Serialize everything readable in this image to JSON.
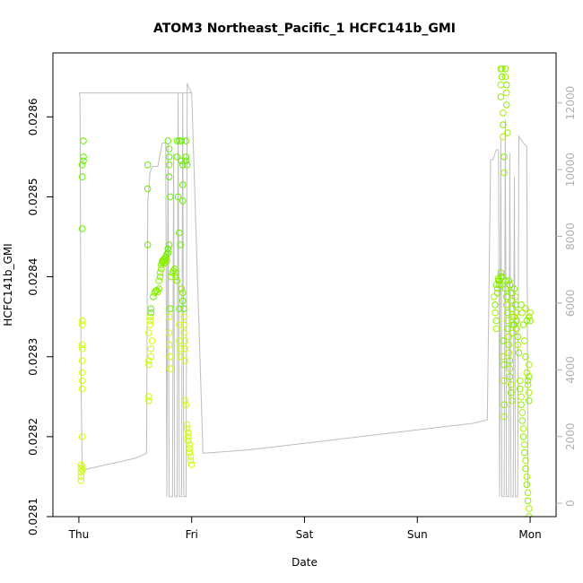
{
  "chart_data": {
    "type": "scatter",
    "title": "ATOM3 Northeast_Pacific_1 HCFC141b_GMI",
    "xlabel": "Date",
    "ylabel": "HCFC141b_GMI",
    "x_ticks": [
      "Thu",
      "Fri",
      "Sat",
      "Sun",
      "Mon"
    ],
    "xlim_days": [
      -0.23,
      4.23
    ],
    "y_ticks": [
      0.0281,
      0.0282,
      0.0283,
      0.0284,
      0.0285,
      0.0286
    ],
    "ylim": [
      0.0281,
      0.02868
    ],
    "y2_ticks": [
      0,
      2000,
      4000,
      6000,
      8000,
      10000,
      12000
    ],
    "y2lim": [
      -400,
      13500
    ],
    "colors": {
      "altitude_line": "#bebebe",
      "points_low": "#ccff00",
      "points_high": "#66ee00",
      "axis": "#000000",
      "right_axis": "#b0b0b0"
    },
    "series": [
      {
        "kind": "concentration_points",
        "points": [
          [
            0.02,
            0.028165
          ],
          [
            0.02,
            0.02816
          ],
          [
            0.02,
            0.028155
          ],
          [
            0.02,
            0.02815
          ],
          [
            0.02,
            0.028145
          ],
          [
            0.03,
            0.028163
          ],
          [
            0.03,
            0.028158
          ],
          [
            0.03,
            0.0282
          ],
          [
            0.03,
            0.02826
          ],
          [
            0.03,
            0.02828
          ],
          [
            0.03,
            0.02827
          ],
          [
            0.03,
            0.028295
          ],
          [
            0.03,
            0.02831
          ],
          [
            0.03,
            0.028315
          ],
          [
            0.03,
            0.02834
          ],
          [
            0.03,
            0.028345
          ],
          [
            0.03,
            0.02846
          ],
          [
            0.03,
            0.028525
          ],
          [
            0.03,
            0.02854
          ],
          [
            0.04,
            0.028545
          ],
          [
            0.04,
            0.02855
          ],
          [
            0.04,
            0.02857
          ],
          [
            0.61,
            0.02854
          ],
          [
            0.61,
            0.02851
          ],
          [
            0.61,
            0.02844
          ],
          [
            0.62,
            0.02825
          ],
          [
            0.62,
            0.028245
          ],
          [
            0.62,
            0.02829
          ],
          [
            0.62,
            0.028295
          ],
          [
            0.62,
            0.02833
          ],
          [
            0.63,
            0.02834
          ],
          [
            0.63,
            0.028345
          ],
          [
            0.63,
            0.02835
          ],
          [
            0.64,
            0.028355
          ],
          [
            0.64,
            0.02836
          ],
          [
            0.64,
            0.0283
          ],
          [
            0.64,
            0.02831
          ],
          [
            0.65,
            0.02832
          ],
          [
            0.66,
            0.028375
          ],
          [
            0.67,
            0.02838
          ],
          [
            0.68,
            0.028382
          ],
          [
            0.69,
            0.028383
          ],
          [
            0.7,
            0.028381
          ],
          [
            0.71,
            0.028385
          ],
          [
            0.71,
            0.028395
          ],
          [
            0.72,
            0.0284
          ],
          [
            0.72,
            0.028405
          ],
          [
            0.73,
            0.02841
          ],
          [
            0.73,
            0.028415
          ],
          [
            0.74,
            0.028418
          ],
          [
            0.74,
            0.02842
          ],
          [
            0.75,
            0.028422
          ],
          [
            0.75,
            0.028419
          ],
          [
            0.76,
            0.028421
          ],
          [
            0.76,
            0.028417
          ],
          [
            0.77,
            0.028423
          ],
          [
            0.77,
            0.028425
          ],
          [
            0.78,
            0.02842
          ],
          [
            0.78,
            0.028428
          ],
          [
            0.79,
            0.02843
          ],
          [
            0.79,
            0.028435
          ],
          [
            0.8,
            0.02844
          ],
          [
            0.79,
            0.02857
          ],
          [
            0.8,
            0.02856
          ],
          [
            0.8,
            0.02855
          ],
          [
            0.8,
            0.02854
          ],
          [
            0.8,
            0.028525
          ],
          [
            0.81,
            0.0285
          ],
          [
            0.8,
            0.02833
          ],
          [
            0.8,
            0.028315
          ],
          [
            0.81,
            0.0283
          ],
          [
            0.81,
            0.028285
          ],
          [
            0.8,
            0.02835
          ],
          [
            0.81,
            0.02836
          ],
          [
            0.82,
            0.0284
          ],
          [
            0.83,
            0.028405
          ],
          [
            0.84,
            0.028408
          ],
          [
            0.85,
            0.02841
          ],
          [
            0.86,
            0.028405
          ],
          [
            0.86,
            0.0284
          ],
          [
            0.87,
            0.028395
          ],
          [
            0.87,
            0.02857
          ],
          [
            0.87,
            0.02855
          ],
          [
            0.88,
            0.0285
          ],
          [
            0.89,
            0.02857
          ],
          [
            0.89,
            0.028455
          ],
          [
            0.9,
            0.02844
          ],
          [
            0.89,
            0.02836
          ],
          [
            0.89,
            0.02834
          ],
          [
            0.89,
            0.02832
          ],
          [
            0.9,
            0.02831
          ],
          [
            0.9,
            0.0283
          ],
          [
            0.91,
            0.02857
          ],
          [
            0.91,
            0.028545
          ],
          [
            0.92,
            0.02854
          ],
          [
            0.92,
            0.028515
          ],
          [
            0.92,
            0.028495
          ],
          [
            0.91,
            0.028385
          ],
          [
            0.92,
            0.02838
          ],
          [
            0.92,
            0.02837
          ],
          [
            0.93,
            0.02836
          ],
          [
            0.93,
            0.02834
          ],
          [
            0.93,
            0.02835
          ],
          [
            0.93,
            0.02833
          ],
          [
            0.94,
            0.02832
          ],
          [
            0.94,
            0.02831
          ],
          [
            0.94,
            0.028295
          ],
          [
            0.94,
            0.028245
          ],
          [
            0.95,
            0.02824
          ],
          [
            0.95,
            0.02857
          ],
          [
            0.95,
            0.02855
          ],
          [
            0.95,
            0.028545
          ],
          [
            0.96,
            0.02854
          ],
          [
            0.96,
            0.028215
          ],
          [
            0.96,
            0.02821
          ],
          [
            0.97,
            0.028205
          ],
          [
            0.97,
            0.0282
          ],
          [
            0.97,
            0.028195
          ],
          [
            0.98,
            0.02819
          ],
          [
            0.98,
            0.028185
          ],
          [
            0.98,
            0.02818
          ],
          [
            0.99,
            0.028175
          ],
          [
            0.99,
            0.02817
          ],
          [
            1.0,
            0.028165
          ],
          [
            3.68,
            0.028375
          ],
          [
            3.69,
            0.028365
          ],
          [
            3.69,
            0.028355
          ],
          [
            3.7,
            0.028345
          ],
          [
            3.7,
            0.028335
          ],
          [
            3.7,
            0.02839
          ],
          [
            3.71,
            0.028385
          ],
          [
            3.71,
            0.02838
          ],
          [
            3.72,
            0.028395
          ],
          [
            3.72,
            0.028398
          ],
          [
            3.73,
            0.028395
          ],
          [
            3.73,
            0.02839
          ],
          [
            3.74,
            0.0284
          ],
          [
            3.74,
            0.028405
          ],
          [
            3.75,
            0.0284
          ],
          [
            3.74,
            0.02866
          ],
          [
            3.74,
            0.02864
          ],
          [
            3.74,
            0.028625
          ],
          [
            3.75,
            0.02866
          ],
          [
            3.75,
            0.02865
          ],
          [
            3.76,
            0.028605
          ],
          [
            3.76,
            0.02859
          ],
          [
            3.76,
            0.028575
          ],
          [
            3.77,
            0.02855
          ],
          [
            3.77,
            0.02853
          ],
          [
            3.76,
            0.02832
          ],
          [
            3.76,
            0.0283
          ],
          [
            3.77,
            0.02829
          ],
          [
            3.77,
            0.02827
          ],
          [
            3.77,
            0.02824
          ],
          [
            3.77,
            0.028225
          ],
          [
            3.78,
            0.02866
          ],
          [
            3.78,
            0.02865
          ],
          [
            3.79,
            0.02864
          ],
          [
            3.79,
            0.02863
          ],
          [
            3.79,
            0.028615
          ],
          [
            3.8,
            0.02858
          ],
          [
            3.78,
            0.028395
          ],
          [
            3.78,
            0.028385
          ],
          [
            3.79,
            0.028375
          ],
          [
            3.79,
            0.028365
          ],
          [
            3.8,
            0.028355
          ],
          [
            3.8,
            0.028345
          ],
          [
            3.8,
            0.028335
          ],
          [
            3.81,
            0.028325
          ],
          [
            3.81,
            0.028315
          ],
          [
            3.81,
            0.028305
          ],
          [
            3.82,
            0.028295
          ],
          [
            3.82,
            0.028285
          ],
          [
            3.82,
            0.028275
          ],
          [
            3.83,
            0.028265
          ],
          [
            3.83,
            0.028255
          ],
          [
            3.84,
            0.028245
          ],
          [
            3.81,
            0.028395
          ],
          [
            3.82,
            0.02839
          ],
          [
            3.83,
            0.02838
          ],
          [
            3.83,
            0.02837
          ],
          [
            3.84,
            0.02836
          ],
          [
            3.84,
            0.02835
          ],
          [
            3.85,
            0.02834
          ],
          [
            3.85,
            0.02833
          ],
          [
            3.86,
            0.02834
          ],
          [
            3.86,
            0.02835
          ],
          [
            3.86,
            0.028385
          ],
          [
            3.87,
            0.028375
          ],
          [
            3.87,
            0.028365
          ],
          [
            3.88,
            0.028355
          ],
          [
            3.88,
            0.028345
          ],
          [
            3.88,
            0.028335
          ],
          [
            3.89,
            0.028325
          ],
          [
            3.89,
            0.028315
          ],
          [
            3.9,
            0.028305
          ],
          [
            3.91,
            0.02827
          ],
          [
            3.91,
            0.02826
          ],
          [
            3.92,
            0.02825
          ],
          [
            3.92,
            0.02824
          ],
          [
            3.93,
            0.02823
          ],
          [
            3.93,
            0.02822
          ],
          [
            3.94,
            0.02821
          ],
          [
            3.94,
            0.0282
          ],
          [
            3.95,
            0.02819
          ],
          [
            3.95,
            0.02818
          ],
          [
            3.96,
            0.02817
          ],
          [
            3.96,
            0.02816
          ],
          [
            3.97,
            0.02815
          ],
          [
            3.97,
            0.02814
          ],
          [
            3.98,
            0.02813
          ],
          [
            3.98,
            0.02812
          ],
          [
            3.99,
            0.02811
          ],
          [
            3.99,
            0.0281
          ],
          [
            3.99,
            0.02829
          ],
          [
            3.99,
            0.028275
          ],
          [
            3.99,
            0.028255
          ],
          [
            3.99,
            0.028245
          ],
          [
            3.98,
            0.028265
          ],
          [
            3.98,
            0.02827
          ],
          [
            3.97,
            0.02828
          ],
          [
            3.96,
            0.0283
          ],
          [
            3.95,
            0.02832
          ],
          [
            3.94,
            0.02834
          ],
          [
            3.93,
            0.028355
          ],
          [
            3.92,
            0.028365
          ],
          [
            4.0,
            0.028355
          ],
          [
            4.0,
            0.028345
          ],
          [
            3.99,
            0.02835
          ],
          [
            3.97,
            0.028345
          ],
          [
            3.96,
            0.02836
          ]
        ]
      },
      {
        "kind": "altitude_line",
        "points": [
          [
            0.0,
            12300
          ],
          [
            0.01,
            12200
          ],
          [
            0.02,
            3500
          ],
          [
            0.03,
            1000
          ],
          [
            0.05,
            1000
          ],
          [
            0.1,
            1050
          ],
          [
            0.3,
            1200
          ],
          [
            0.5,
            1350
          ],
          [
            0.6,
            1500
          ],
          [
            0.61,
            9000
          ],
          [
            0.63,
            9900
          ],
          [
            0.65,
            10100
          ],
          [
            0.7,
            10100
          ],
          [
            0.74,
            10800
          ],
          [
            0.77,
            10800
          ],
          [
            0.78,
            200
          ],
          [
            0.79,
            10800
          ],
          [
            0.8,
            200
          ],
          [
            0.83,
            200
          ],
          [
            0.84,
            10500
          ],
          [
            0.85,
            200
          ],
          [
            0.87,
            200
          ],
          [
            0.88,
            12300
          ],
          [
            0.89,
            200
          ],
          [
            0.91,
            200
          ],
          [
            0.92,
            12300
          ],
          [
            0.93,
            200
          ],
          [
            0.95,
            200
          ],
          [
            0.96,
            12600
          ],
          [
            0.97,
            12500
          ],
          [
            1.0,
            12300
          ],
          [
            0.97,
            12300
          ],
          [
            0.9,
            12300
          ],
          [
            0.8,
            12300
          ],
          [
            0.5,
            12300
          ],
          [
            0.2,
            12300
          ],
          [
            0.0,
            12300
          ],
          [
            1.0,
            12300
          ],
          [
            1.1,
            1500
          ],
          [
            1.5,
            1600
          ],
          [
            2.0,
            1800
          ],
          [
            2.5,
            2000
          ],
          [
            3.0,
            2200
          ],
          [
            3.5,
            2400
          ],
          [
            3.62,
            2500
          ],
          [
            3.65,
            10300
          ],
          [
            3.67,
            10300
          ],
          [
            3.7,
            10600
          ],
          [
            3.72,
            10600
          ],
          [
            3.73,
            200
          ],
          [
            3.74,
            10900
          ],
          [
            3.75,
            200
          ],
          [
            3.77,
            200
          ],
          [
            3.78,
            11500
          ],
          [
            3.79,
            200
          ],
          [
            3.81,
            200
          ],
          [
            3.82,
            10500
          ],
          [
            3.83,
            200
          ],
          [
            3.85,
            200
          ],
          [
            3.86,
            9800
          ],
          [
            3.87,
            200
          ],
          [
            3.89,
            200
          ],
          [
            3.9,
            11000
          ],
          [
            3.94,
            10800
          ],
          [
            3.97,
            10700
          ],
          [
            3.98,
            500
          ],
          [
            3.99,
            500
          ]
        ]
      }
    ]
  }
}
